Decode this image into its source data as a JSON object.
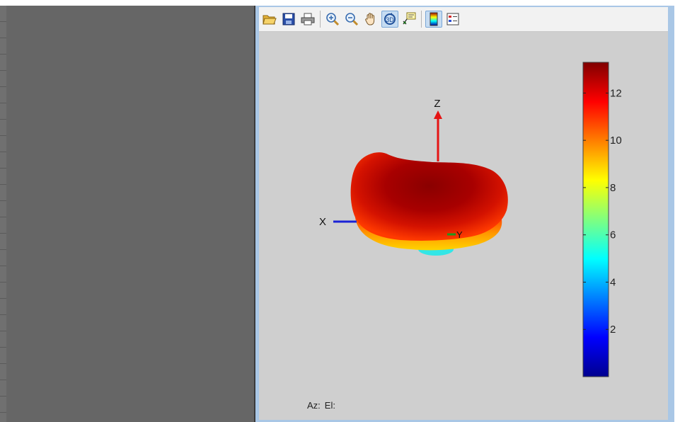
{
  "toolbar": {
    "buttons": [
      {
        "name": "open-file-button",
        "icon": "open-folder-icon"
      },
      {
        "name": "save-button",
        "icon": "save-disk-icon"
      },
      {
        "name": "print-button",
        "icon": "printer-icon"
      },
      {
        "name": "zoom-in-button",
        "icon": "zoom-in-icon"
      },
      {
        "name": "zoom-out-button",
        "icon": "zoom-out-icon"
      },
      {
        "name": "pan-button",
        "icon": "hand-icon"
      },
      {
        "name": "rotate-3d-button",
        "icon": "rotate-icon",
        "active": true
      },
      {
        "name": "data-cursor-button",
        "icon": "data-cursor-icon"
      },
      {
        "name": "insert-colorbar-button",
        "icon": "colorbar-icon",
        "active": true
      },
      {
        "name": "insert-legend-button",
        "icon": "legend-icon"
      }
    ]
  },
  "plot": {
    "axis_labels": {
      "x": "X",
      "y": "Y",
      "z": "Z"
    },
    "axis_colors": {
      "x": "#1a22d6",
      "y": "#1e9a1e",
      "z": "#e51414"
    },
    "colorbar": {
      "ticks": [
        "2",
        "4",
        "6",
        "8",
        "10",
        "12"
      ],
      "tick_values": [
        2,
        4,
        6,
        8,
        10,
        12
      ],
      "min": 0,
      "max": 13.3,
      "colormap": "jet"
    },
    "background_color": "#cfcfcf"
  },
  "status": {
    "az_label": "Az:",
    "el_label": "El:"
  }
}
